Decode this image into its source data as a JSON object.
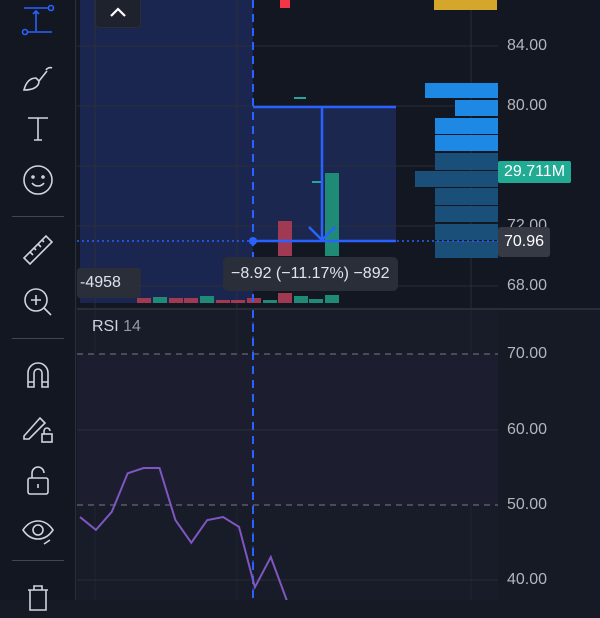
{
  "toolbar": {
    "tools": [
      {
        "name": "measure-tool-icon",
        "active": true
      },
      {
        "name": "brush-icon"
      },
      {
        "name": "text-icon"
      },
      {
        "name": "emoji-icon"
      },
      {
        "name": "ruler-icon"
      },
      {
        "name": "zoom-in-icon"
      },
      {
        "name": "magnet-icon"
      },
      {
        "name": "lock-drawings-icon"
      },
      {
        "name": "unlock-icon"
      },
      {
        "name": "eye-icon"
      },
      {
        "name": "trash-icon"
      }
    ]
  },
  "price_axis": {
    "ticks": [
      "84.00",
      "80.00",
      "72.00",
      "68.00"
    ],
    "current_price": "70.96",
    "volume_label": "29.711M"
  },
  "measure": {
    "label": "−8.92 (−11.17%) −892",
    "left_label": "-4958"
  },
  "rsi": {
    "title": "RSI",
    "period": "14",
    "ticks": [
      "70.00",
      "60.00",
      "50.00",
      "40.00"
    ],
    "values": [
      48.4,
      46.7,
      49.1,
      54.2,
      54.9,
      54.9,
      48.0,
      45.0,
      48.0,
      48.4,
      47.1,
      39.1,
      43.1,
      37.4
    ]
  },
  "colors": {
    "accent": "#2962ff",
    "up": "#26a69a",
    "down": "#ef5350",
    "rsi": "#7e57c2",
    "profile": "#1e88e5"
  }
}
